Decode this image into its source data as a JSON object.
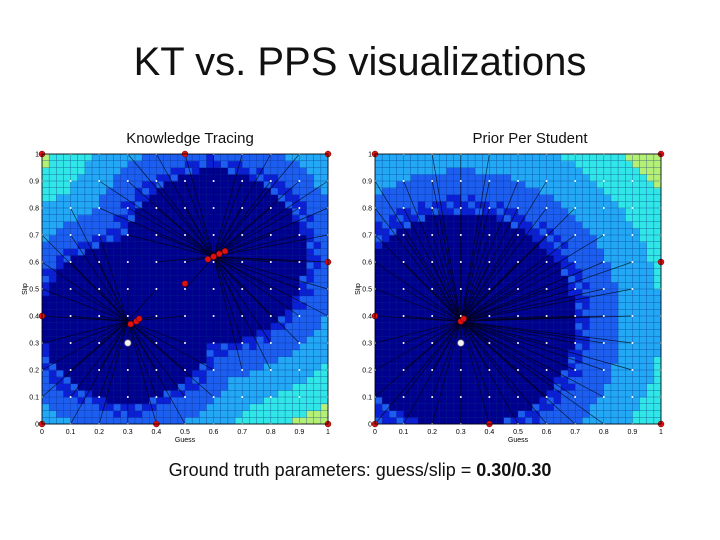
{
  "title": "KT vs. PPS visualizations",
  "caption": {
    "prefix": "Ground truth parameters: guess/slip = ",
    "value": "0.30/0.30"
  },
  "chart_data": [
    {
      "type": "heatmap",
      "title": "Knowledge Tracing",
      "xlabel": "Guess",
      "ylabel": "Slip",
      "xlim": [
        0,
        1
      ],
      "ylim": [
        0,
        1
      ],
      "x_ticks": [
        "0",
        "0.1",
        "0.2",
        "0.3",
        "0.4",
        "0.5",
        "0.6",
        "0.7",
        "0.8",
        "0.9",
        "1"
      ],
      "y_ticks": [
        "0",
        "0.1",
        "0.2",
        "0.3",
        "0.4",
        "0.5",
        "0.6",
        "0.7",
        "0.8",
        "0.9",
        "1"
      ],
      "colormap": [
        "#00008f",
        "#0a1fd6",
        "#1c5ef0",
        "#22a8f5",
        "#30e6e6",
        "#b4f075",
        "#f0f040"
      ],
      "basins": [
        {
          "x": 0.3,
          "y": 0.38,
          "r": 0.3
        },
        {
          "x": 0.6,
          "y": 0.62,
          "r": 0.32
        }
      ],
      "ground_truth": {
        "x": 0.3,
        "y": 0.3
      },
      "converged_points": [
        {
          "x": 0.31,
          "y": 0.37
        },
        {
          "x": 0.33,
          "y": 0.38
        },
        {
          "x": 0.34,
          "y": 0.39
        },
        {
          "x": 0.58,
          "y": 0.61
        },
        {
          "x": 0.6,
          "y": 0.62
        },
        {
          "x": 0.62,
          "y": 0.63
        },
        {
          "x": 0.64,
          "y": 0.64
        },
        {
          "x": 0.5,
          "y": 0.52
        },
        {
          "x": 0,
          "y": 1
        },
        {
          "x": 0.5,
          "y": 1
        },
        {
          "x": 1,
          "y": 1
        },
        {
          "x": 0,
          "y": 0.4
        },
        {
          "x": 1,
          "y": 0.6
        },
        {
          "x": 0,
          "y": 0
        },
        {
          "x": 0.4,
          "y": 0
        },
        {
          "x": 1,
          "y": 0
        }
      ]
    },
    {
      "type": "heatmap",
      "title": "Prior Per Student",
      "xlabel": "Guess",
      "ylabel": "Slip",
      "xlim": [
        0,
        1
      ],
      "ylim": [
        0,
        1
      ],
      "x_ticks": [
        "0",
        "0.1",
        "0.2",
        "0.3",
        "0.4",
        "0.5",
        "0.6",
        "0.7",
        "0.8",
        "0.9",
        "1"
      ],
      "y_ticks": [
        "0",
        "0.1",
        "0.2",
        "0.3",
        "0.4",
        "0.5",
        "0.6",
        "0.7",
        "0.8",
        "0.9",
        "1"
      ],
      "colormap": [
        "#00008f",
        "#0a1fd6",
        "#1c5ef0",
        "#22a8f5",
        "#30e6e6",
        "#b4f075",
        "#f0f040"
      ],
      "basins": [
        {
          "x": 0.3,
          "y": 0.38,
          "r": 0.4
        }
      ],
      "ground_truth": {
        "x": 0.3,
        "y": 0.3
      },
      "converged_points": [
        {
          "x": 0.3,
          "y": 0.38
        },
        {
          "x": 0.31,
          "y": 0.39
        },
        {
          "x": 0,
          "y": 1
        },
        {
          "x": 1,
          "y": 1
        },
        {
          "x": 1,
          "y": 0.6
        },
        {
          "x": 0,
          "y": 0.4
        },
        {
          "x": 0,
          "y": 0
        },
        {
          "x": 0.4,
          "y": 0
        },
        {
          "x": 1,
          "y": 0
        }
      ]
    }
  ]
}
